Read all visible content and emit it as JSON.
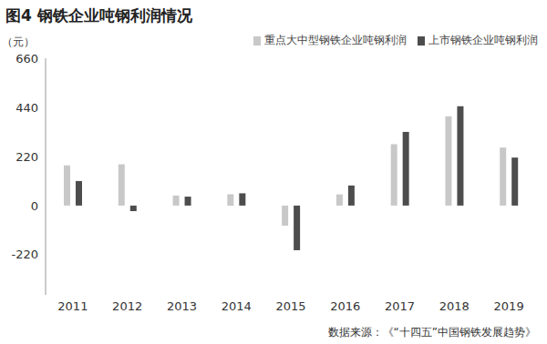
{
  "chart_data": {
    "type": "bar",
    "title": "图4 钢铁企业吨钢利润情况",
    "y_label": "（元）",
    "source": "数据来源：《“十四五”中国钢铁发展趋势》",
    "categories": [
      "2011",
      "2012",
      "2013",
      "2014",
      "2015",
      "2016",
      "2017",
      "2018",
      "2019"
    ],
    "series": [
      {
        "name": "重点大中型钢铁企业吨钢利润",
        "color": "#c8c8c8",
        "values": [
          180,
          185,
          45,
          50,
          -90,
          50,
          275,
          400,
          260
        ]
      },
      {
        "name": "上市钢铁企业吨钢利润",
        "color": "#4d4d4d",
        "values": [
          110,
          -25,
          40,
          55,
          -200,
          90,
          330,
          445,
          215
        ]
      }
    ],
    "ylim": [
      -400,
      660
    ],
    "yticks": [
      -220,
      0,
      220,
      440,
      660
    ],
    "grid": false,
    "legend": "top-right"
  }
}
